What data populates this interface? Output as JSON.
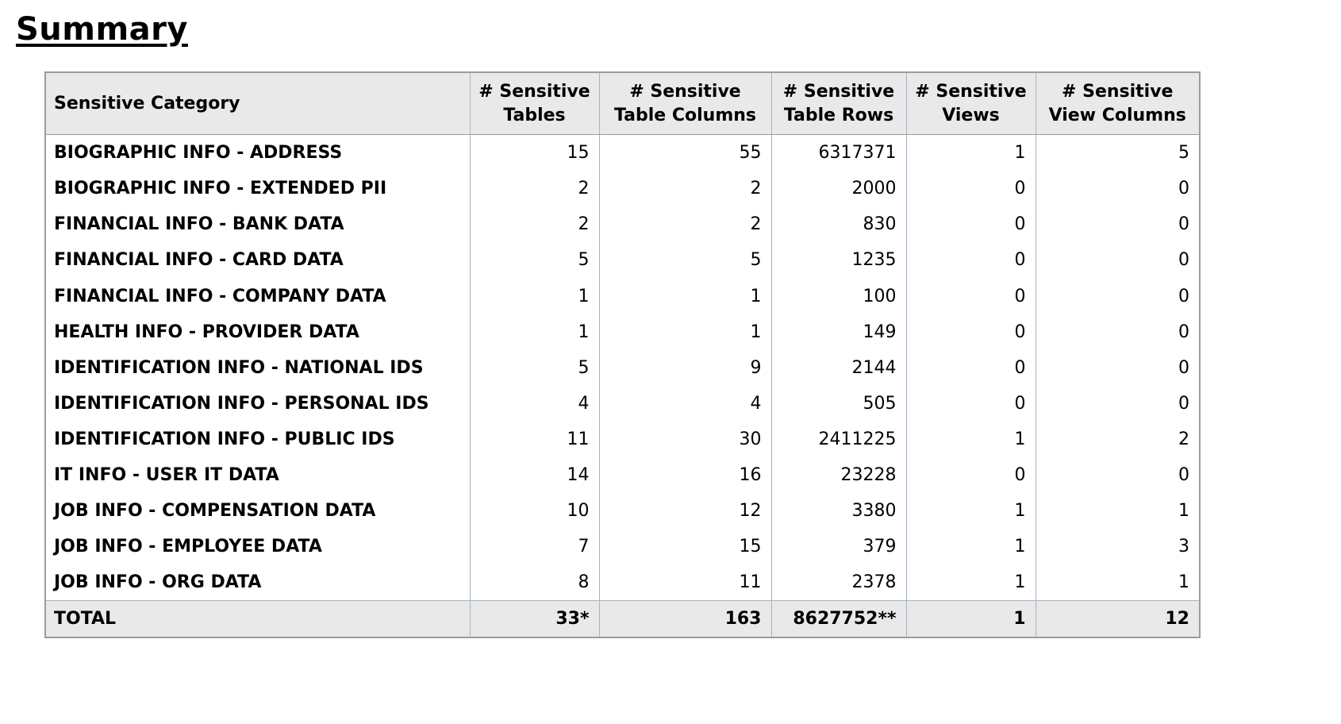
{
  "page": {
    "title": "Summary"
  },
  "colors": {
    "header_bg": "#e9e9e9",
    "total_row_bg": "#e9e9e9",
    "outer_border": "#9c9c9c",
    "column_separator": "#a8b2c2",
    "text": "#000000",
    "page_bg": "#ffffff"
  },
  "table": {
    "columns": [
      "Sensitive Category",
      "# Sensitive Tables",
      "# Sensitive Table Columns",
      "# Sensitive Table Rows",
      "# Sensitive Views",
      "# Sensitive View Columns"
    ],
    "rows": [
      {
        "category": "BIOGRAPHIC INFO - ADDRESS",
        "tables": "15",
        "table_columns": "55",
        "table_rows": "6317371",
        "views": "1",
        "view_columns": "5"
      },
      {
        "category": "BIOGRAPHIC INFO - EXTENDED PII",
        "tables": "2",
        "table_columns": "2",
        "table_rows": "2000",
        "views": "0",
        "view_columns": "0"
      },
      {
        "category": "FINANCIAL INFO - BANK DATA",
        "tables": "2",
        "table_columns": "2",
        "table_rows": "830",
        "views": "0",
        "view_columns": "0"
      },
      {
        "category": "FINANCIAL INFO - CARD DATA",
        "tables": "5",
        "table_columns": "5",
        "table_rows": "1235",
        "views": "0",
        "view_columns": "0"
      },
      {
        "category": "FINANCIAL INFO - COMPANY DATA",
        "tables": "1",
        "table_columns": "1",
        "table_rows": "100",
        "views": "0",
        "view_columns": "0"
      },
      {
        "category": "HEALTH INFO - PROVIDER DATA",
        "tables": "1",
        "table_columns": "1",
        "table_rows": "149",
        "views": "0",
        "view_columns": "0"
      },
      {
        "category": "IDENTIFICATION INFO - NATIONAL IDS",
        "tables": "5",
        "table_columns": "9",
        "table_rows": "2144",
        "views": "0",
        "view_columns": "0"
      },
      {
        "category": "IDENTIFICATION INFO - PERSONAL IDS",
        "tables": "4",
        "table_columns": "4",
        "table_rows": "505",
        "views": "0",
        "view_columns": "0"
      },
      {
        "category": "IDENTIFICATION INFO - PUBLIC IDS",
        "tables": "11",
        "table_columns": "30",
        "table_rows": "2411225",
        "views": "1",
        "view_columns": "2"
      },
      {
        "category": "IT INFO - USER IT DATA",
        "tables": "14",
        "table_columns": "16",
        "table_rows": "23228",
        "views": "0",
        "view_columns": "0"
      },
      {
        "category": "JOB INFO - COMPENSATION DATA",
        "tables": "10",
        "table_columns": "12",
        "table_rows": "3380",
        "views": "1",
        "view_columns": "1"
      },
      {
        "category": "JOB INFO - EMPLOYEE DATA",
        "tables": "7",
        "table_columns": "15",
        "table_rows": "379",
        "views": "1",
        "view_columns": "3"
      },
      {
        "category": "JOB INFO - ORG DATA",
        "tables": "8",
        "table_columns": "11",
        "table_rows": "2378",
        "views": "1",
        "view_columns": "1"
      }
    ],
    "total": {
      "category": "TOTAL",
      "tables": "33*",
      "table_columns": "163",
      "table_rows": "8627752**",
      "views": "1",
      "view_columns": "12"
    }
  }
}
